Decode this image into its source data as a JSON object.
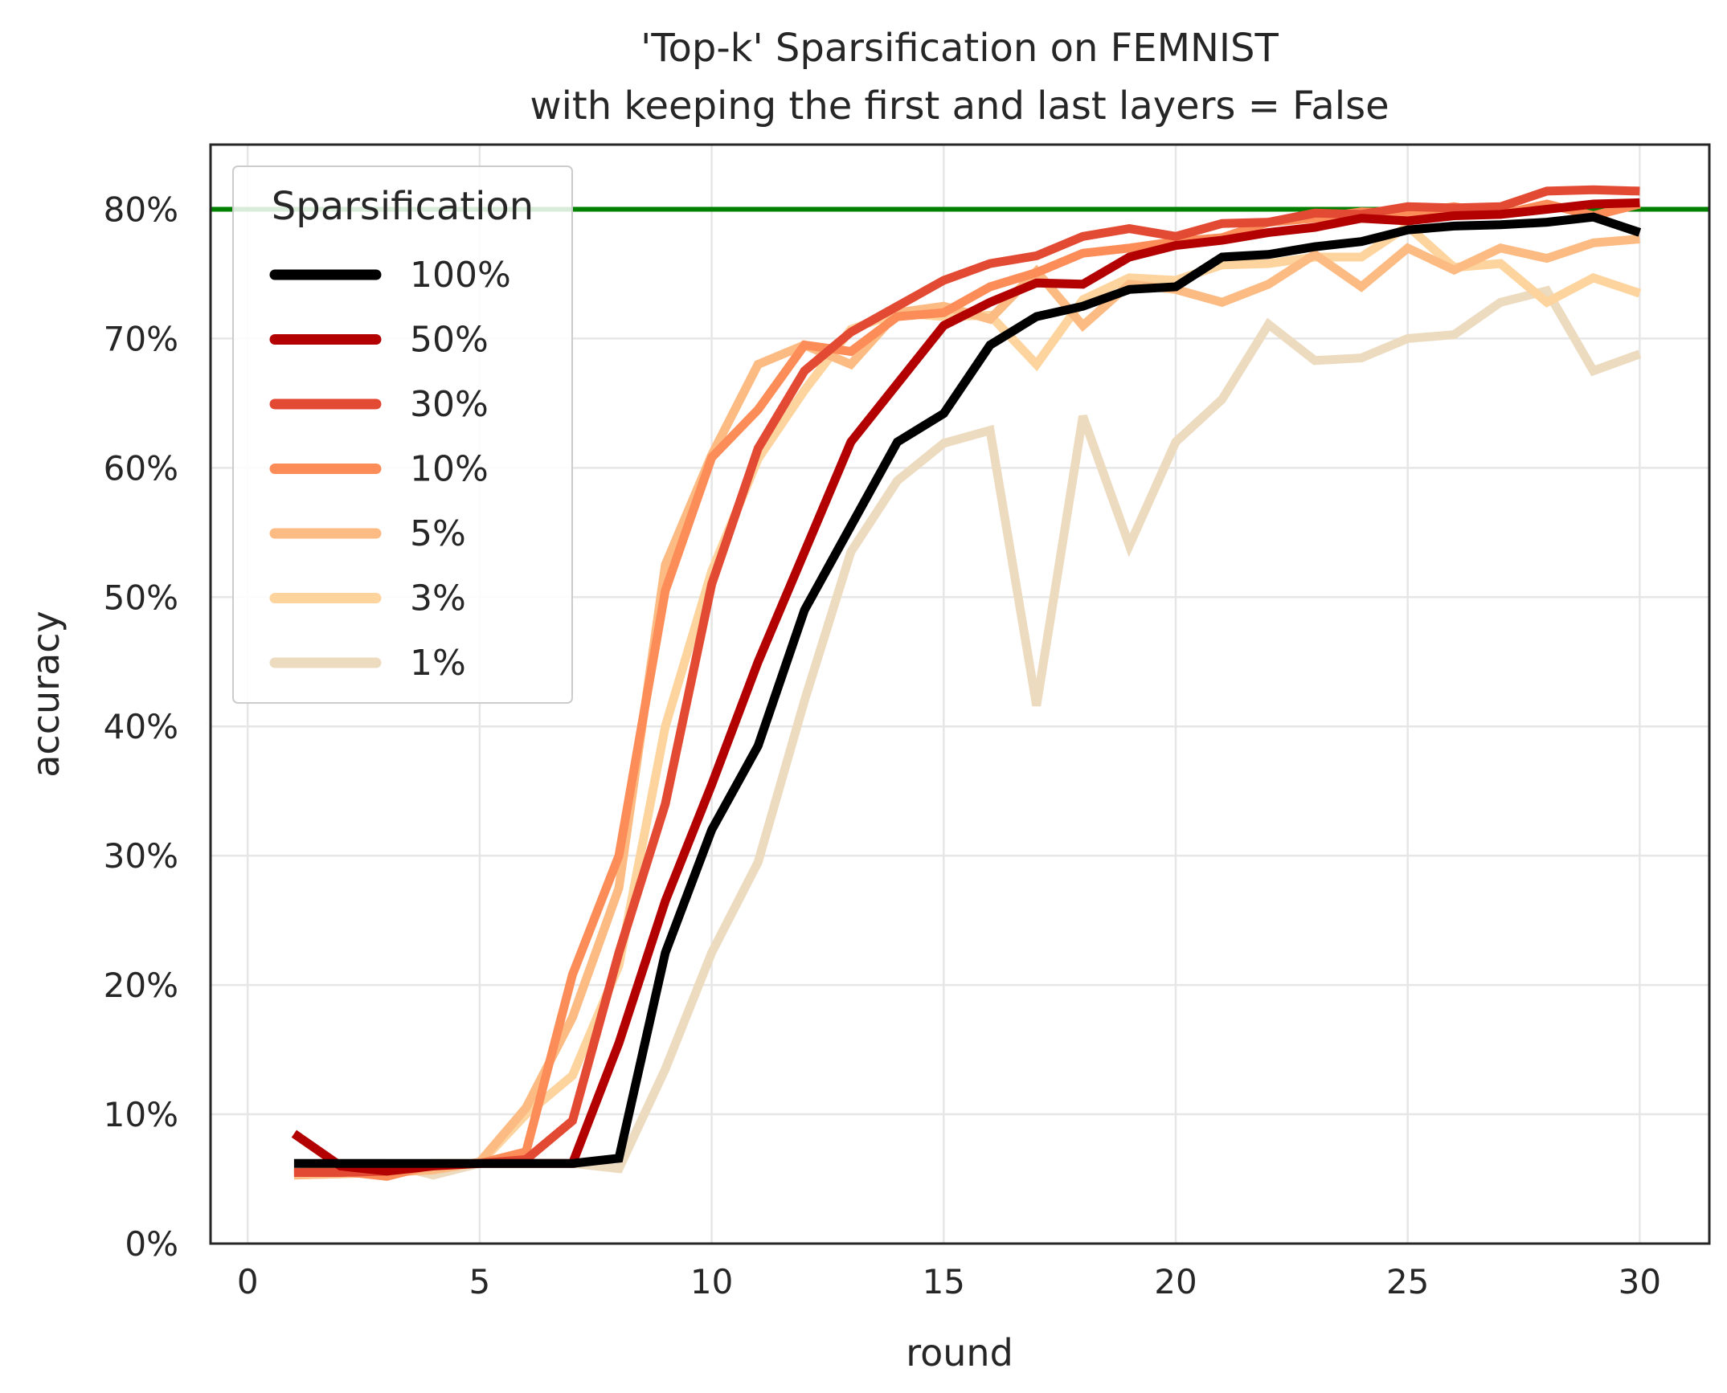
{
  "chart_data": {
    "type": "line",
    "title_line1": "'Top-k' Sparsification on FEMNIST",
    "title_line2": "with keeping the first and last layers = False",
    "xlabel": "round",
    "ylabel": "accuracy",
    "xlim": [
      -0.8,
      31.5
    ],
    "ylim": [
      0,
      85
    ],
    "xticks": [
      0,
      5,
      10,
      15,
      20,
      25,
      30
    ],
    "xtick_labels": [
      "0",
      "5",
      "10",
      "15",
      "20",
      "25",
      "30"
    ],
    "yticks": [
      0,
      10,
      20,
      30,
      40,
      50,
      60,
      70,
      80
    ],
    "ytick_labels": [
      "0%",
      "10%",
      "20%",
      "30%",
      "40%",
      "50%",
      "60%",
      "70%",
      "80%"
    ],
    "grid": true,
    "reference_line": {
      "y": 80,
      "color": "#008000"
    },
    "legend": {
      "title": "Sparsification",
      "position": "upper-left"
    },
    "x": [
      1,
      2,
      3,
      4,
      5,
      6,
      7,
      8,
      9,
      10,
      11,
      12,
      13,
      14,
      15,
      16,
      17,
      18,
      19,
      20,
      21,
      22,
      23,
      24,
      25,
      26,
      27,
      28,
      29,
      30
    ],
    "series": [
      {
        "name": "100%",
        "color": "#000000",
        "values": [
          6.2,
          6.2,
          6.2,
          6.2,
          6.2,
          6.2,
          6.2,
          6.6,
          22.5,
          32,
          38.5,
          49,
          55.5,
          62,
          64.2,
          69.5,
          71.7,
          72.5,
          73.8,
          74,
          76.3,
          76.5,
          77.1,
          77.5,
          78.4,
          78.7,
          78.8,
          79,
          79.4,
          78.2
        ]
      },
      {
        "name": "50%",
        "color": "#b30000",
        "values": [
          8.5,
          6,
          5.6,
          6,
          6.2,
          6.2,
          6.2,
          15.5,
          26.5,
          35.5,
          45,
          53.5,
          62,
          66.5,
          71,
          72.8,
          74.3,
          74.2,
          76.3,
          77.2,
          77.6,
          78.2,
          78.6,
          79.3,
          79.1,
          79.5,
          79.6,
          80,
          80.4,
          80.5
        ]
      },
      {
        "name": "30%",
        "color": "#e34a33",
        "values": [
          5.5,
          5.5,
          5.6,
          6.1,
          6.2,
          6.5,
          9.5,
          22.5,
          34,
          51,
          61.5,
          67.5,
          70.5,
          72.5,
          74.5,
          75.8,
          76.4,
          77.9,
          78.5,
          77.9,
          78.9,
          79,
          79.7,
          79.6,
          80.2,
          80.1,
          80.2,
          81.4,
          81.5,
          81.4
        ]
      },
      {
        "name": "10%",
        "color": "#fc8d59",
        "values": [
          5.5,
          5.6,
          5.2,
          6.1,
          6.2,
          7.1,
          20.8,
          30,
          50.5,
          60.8,
          64.5,
          69.5,
          69,
          71.7,
          72,
          74,
          75.1,
          76.6,
          77,
          77.5,
          77.8,
          79,
          79.3,
          79.8,
          79.7,
          80.2,
          79.6,
          80.4,
          79.5,
          80.4
        ]
      },
      {
        "name": "5%",
        "color": "#fdbb84",
        "values": [
          5.3,
          5.4,
          5.5,
          5.7,
          6.3,
          10.5,
          17.5,
          27.5,
          52.5,
          61,
          68,
          69.5,
          68,
          72,
          72.5,
          71.5,
          75.2,
          71,
          74.2,
          73.8,
          72.8,
          74.2,
          76.5,
          74,
          77,
          75.3,
          77,
          76.2,
          77.4,
          77.7
        ]
      },
      {
        "name": "3%",
        "color": "#fdd49e",
        "values": [
          5.3,
          5.4,
          6,
          6.2,
          6.2,
          10,
          13,
          21.5,
          40,
          52,
          60.7,
          66,
          70.7,
          72,
          71.7,
          71.8,
          68,
          73,
          74.7,
          74.5,
          75.7,
          75.8,
          76.3,
          76.3,
          78.7,
          75.5,
          75.8,
          72.8,
          74.7,
          73.5
        ]
      },
      {
        "name": "1%",
        "color": "#eddbc0",
        "values": [
          6.2,
          6.2,
          6.2,
          5.3,
          6.2,
          6.2,
          6.2,
          5.8,
          13.5,
          22.5,
          29.5,
          42,
          53.5,
          59,
          61.9,
          62.9,
          41.6,
          64,
          54,
          62,
          65.3,
          71.1,
          68.3,
          68.5,
          70,
          70.3,
          72.8,
          73.7,
          67.5,
          68.8
        ]
      }
    ]
  }
}
